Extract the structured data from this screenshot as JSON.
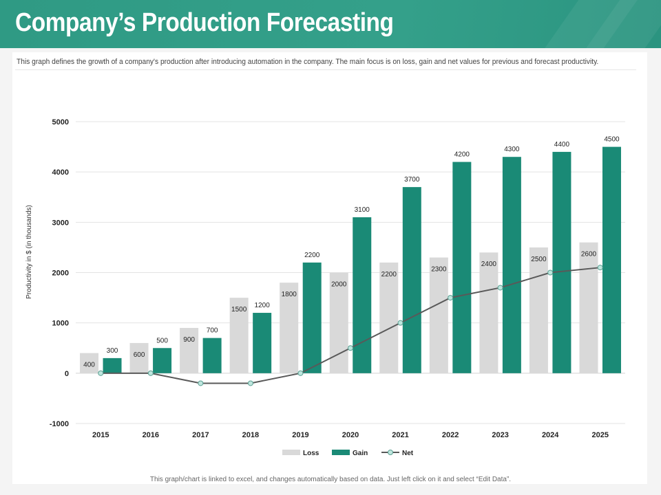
{
  "header": {
    "title": "Company’s Production Forecasting"
  },
  "description": "This graph defines the growth of a company's production after introducing automation in the company. The main focus is on loss, gain and net values for previous and forecast productivity.",
  "footer": "This graph/chart is linked to excel, and changes automatically based on data. Just left click on it and select “Edit Data”.",
  "colors": {
    "loss": "#d9d9d9",
    "gain": "#1a8a76",
    "net": "#595959",
    "net_marker": "#bfe6de",
    "header": "#2f9a84"
  },
  "chart_data": {
    "type": "bar",
    "title": "",
    "xlabel": "",
    "ylabel": "Productivity in $ (in thousands)",
    "ylim": [
      -1000,
      5000
    ],
    "yticks": [
      -1000,
      0,
      1000,
      2000,
      3000,
      4000,
      5000
    ],
    "categories": [
      "2015",
      "2016",
      "2017",
      "2018",
      "2019",
      "2020",
      "2021",
      "2022",
      "2023",
      "2024",
      "2025"
    ],
    "series": [
      {
        "name": "Loss",
        "type": "bar",
        "values": [
          400,
          600,
          900,
          1500,
          1800,
          2000,
          2200,
          2300,
          2400,
          2500,
          2600
        ]
      },
      {
        "name": "Gain",
        "type": "bar",
        "values": [
          300,
          500,
          700,
          1200,
          2200,
          3100,
          3700,
          4200,
          4300,
          4400,
          4500
        ]
      },
      {
        "name": "Net",
        "type": "line",
        "values": [
          0,
          0,
          -200,
          -200,
          0,
          500,
          1000,
          1500,
          1700,
          2000,
          2100
        ]
      }
    ],
    "legend": {
      "position": "bottom",
      "entries": [
        "Loss",
        "Gain",
        "Net"
      ]
    }
  }
}
